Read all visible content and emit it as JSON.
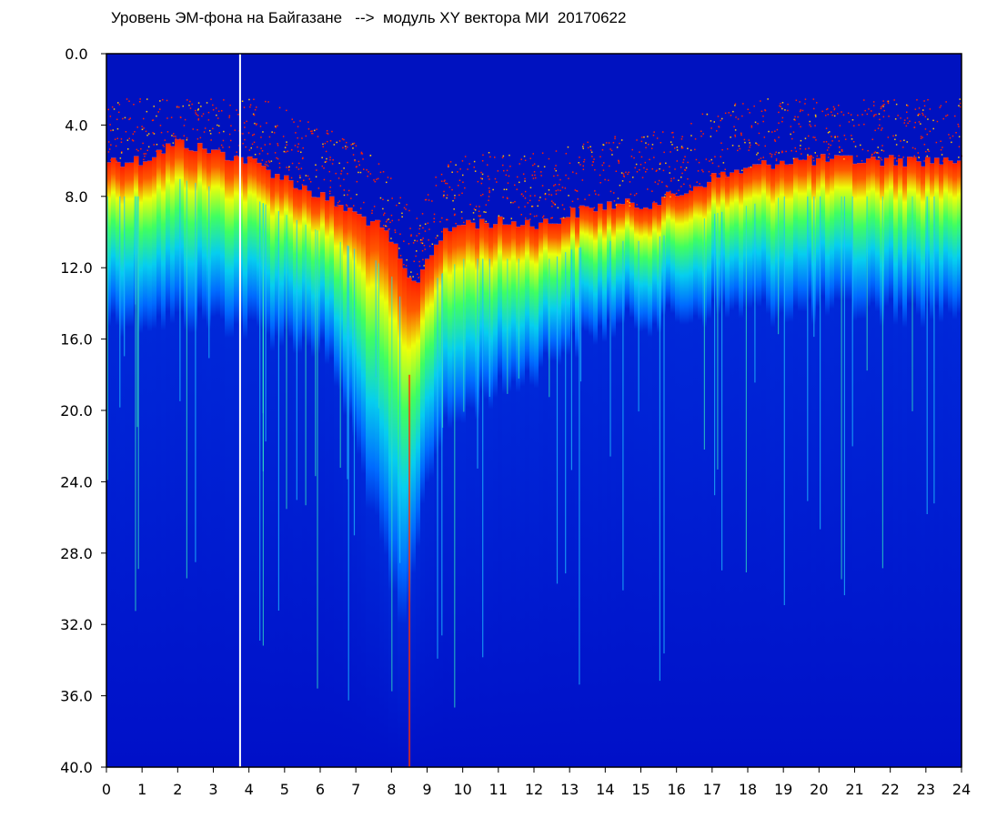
{
  "chart_data": {
    "type": "heatmap",
    "title": "Уровень ЭМ-фона на Байгазане   -->  модуль XY вектора МИ  20170622",
    "xlabel": "",
    "ylabel": "",
    "xlim": [
      0,
      24
    ],
    "ylim": [
      0.0,
      40.0
    ],
    "y_inverted": true,
    "x_ticks": [
      "0",
      "1",
      "2",
      "3",
      "4",
      "5",
      "6",
      "7",
      "8",
      "9",
      "10",
      "11",
      "12",
      "13",
      "14",
      "15",
      "16",
      "17",
      "18",
      "19",
      "20",
      "21",
      "22",
      "23",
      "24"
    ],
    "y_ticks": [
      "0.0",
      "4.0",
      "8.0",
      "12.0",
      "16.0",
      "20.0",
      "24.0",
      "28.0",
      "32.0",
      "36.0",
      "40.0"
    ],
    "grid": false,
    "legend": "none",
    "colormap": [
      "#0010c8",
      "#0060ff",
      "#00c8ff",
      "#40ff60",
      "#ffff00",
      "#ff2000"
    ],
    "spectral_edge": {
      "hours": [
        0,
        1,
        2,
        3,
        4,
        5,
        6,
        6.5,
        7,
        7.5,
        8,
        8.3,
        8.6,
        8.8,
        9,
        9.3,
        9.6,
        10,
        10.5,
        11,
        11.5,
        12,
        12.5,
        13,
        14,
        15,
        16,
        17,
        18,
        19,
        20,
        21,
        22,
        23,
        24
      ],
      "top": [
        6.0,
        6.0,
        5.0,
        5.5,
        6.0,
        7.0,
        8.0,
        8.5,
        9.0,
        9.5,
        10.5,
        12.0,
        13.0,
        12.5,
        11.5,
        10.5,
        10.0,
        9.5,
        9.5,
        9.5,
        9.5,
        9.5,
        9.5,
        9.0,
        8.5,
        8.5,
        8.0,
        7.0,
        6.5,
        6.0,
        6.0,
        6.0,
        6.0,
        6.0,
        6.0
      ],
      "bottom": [
        15.0,
        15.0,
        15.0,
        15.0,
        15.5,
        16.0,
        16.5,
        18.5,
        22.0,
        26.0,
        30.0,
        33.0,
        30.0,
        26.0,
        24.0,
        22.0,
        21.0,
        20.5,
        19.5,
        19.0,
        18.5,
        18.0,
        17.0,
        16.5,
        15.5,
        15.0,
        15.0,
        14.5,
        14.5,
        14.5,
        14.5,
        14.5,
        14.5,
        14.5,
        14.5
      ]
    },
    "white_line_hour": 3.75
  }
}
